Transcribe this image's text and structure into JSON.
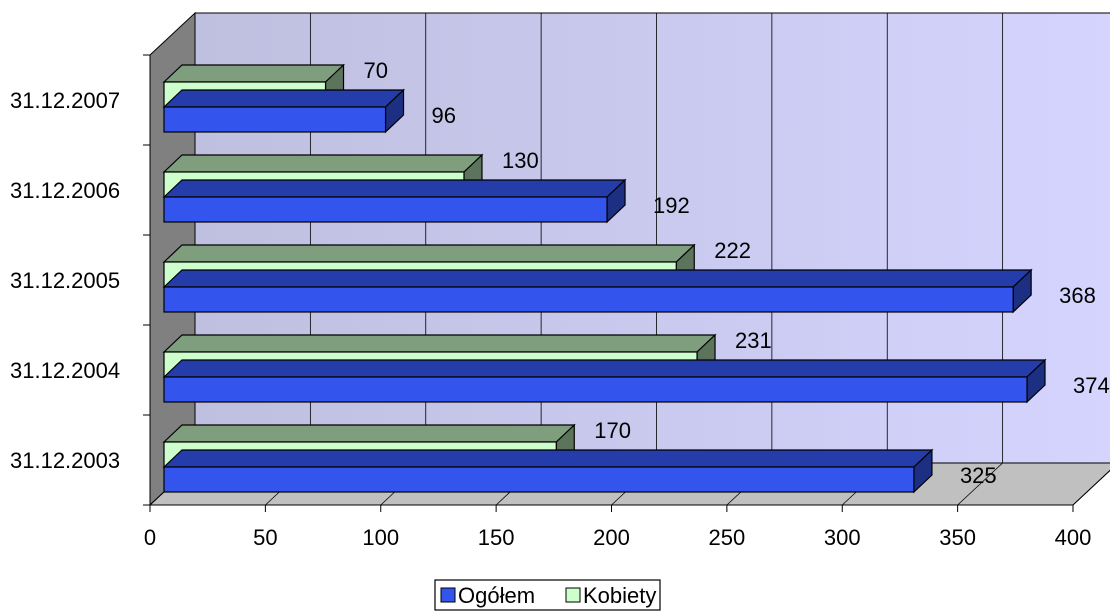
{
  "chart_data": {
    "type": "bar",
    "orientation": "horizontal",
    "three_d": true,
    "categories": [
      "31.12.2003",
      "31.12.2004",
      "31.12.2005",
      "31.12.2006",
      "31.12.2007"
    ],
    "series": [
      {
        "name": "Ogółem",
        "values": [
          325,
          374,
          368,
          192,
          96
        ],
        "color": "#3355ee"
      },
      {
        "name": "Kobiety",
        "values": [
          170,
          231,
          222,
          130,
          70
        ],
        "color": "#ccffcc"
      }
    ],
    "xlim": [
      0,
      400
    ],
    "xticks": [
      0,
      50,
      100,
      150,
      200,
      250,
      300,
      350,
      400
    ],
    "grid": true,
    "legend": "bottom",
    "colors": {
      "wall_left": "#bfbfdf",
      "wall_right": "#d4d4ff",
      "side_wall": "#808080",
      "floor": "#c0c0c0",
      "grid": "#000000"
    }
  }
}
